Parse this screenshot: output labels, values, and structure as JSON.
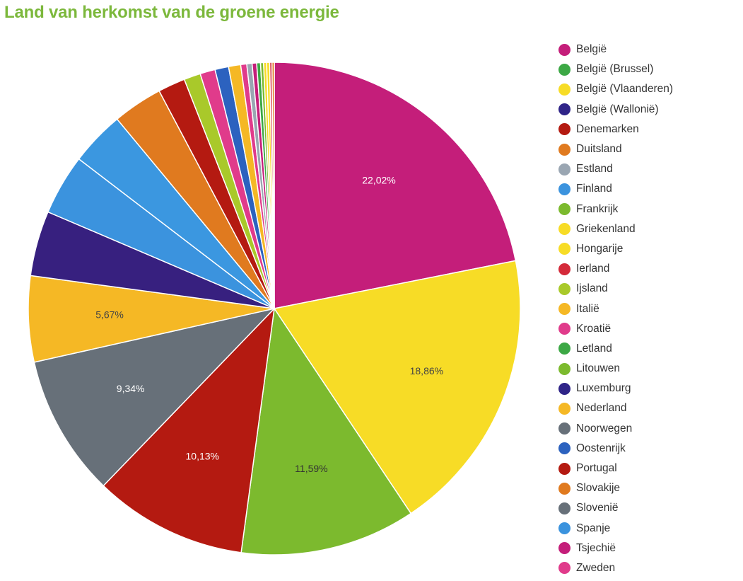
{
  "title": "Land van herkomst van de groene energie",
  "chart_data": {
    "type": "pie",
    "title": "Land van herkomst van de groene energie",
    "legend_position": "right",
    "slices": [
      {
        "label": "Tsjechië",
        "value": 22.02,
        "color": "#c41e7a",
        "display": "22,02%",
        "text_color": "#ffffff"
      },
      {
        "label": "Hongarije",
        "value": 18.86,
        "color": "#f7dc26",
        "display": "18,86%",
        "text_color": "#444444"
      },
      {
        "label": "Frankrijk",
        "value": 11.59,
        "color": "#7cba2e",
        "display": "11,59%",
        "text_color": "#333333"
      },
      {
        "label": "Portugal",
        "value": 10.13,
        "color": "#b41a11",
        "display": "10,13%",
        "text_color": "#ffffff"
      },
      {
        "label": "Noorwegen",
        "value": 9.34,
        "color": "#677079",
        "display": "9,34%",
        "text_color": "#ffffff"
      },
      {
        "label": "Nederland",
        "value": 5.67,
        "color": "#f5b825",
        "display": "5,67%",
        "text_color": "#444444"
      },
      {
        "label": "Luxemburg",
        "value": 4.3,
        "color": "#37207f",
        "display": "",
        "text_color": "#ffffff"
      },
      {
        "label": "Spanje",
        "value": 4.0,
        "color": "#3b93de",
        "display": "",
        "text_color": "#ffffff"
      },
      {
        "label": "Finland",
        "value": 3.6,
        "color": "#3b97e0",
        "display": "",
        "text_color": "#ffffff"
      },
      {
        "label": "Duitsland",
        "value": 3.3,
        "color": "#e07a1f",
        "display": "",
        "text_color": "#ffffff"
      },
      {
        "label": "Denemarken",
        "value": 1.8,
        "color": "#b41a11",
        "display": "",
        "text_color": "#ffffff"
      },
      {
        "label": "Ijsland",
        "value": 1.1,
        "color": "#a9c92a",
        "display": "",
        "text_color": "#ffffff"
      },
      {
        "label": "Kroatië",
        "value": 1.0,
        "color": "#e03b8b",
        "display": "",
        "text_color": "#ffffff"
      },
      {
        "label": "Oostenrijk",
        "value": 0.9,
        "color": "#2c62bf",
        "display": "",
        "text_color": "#ffffff"
      },
      {
        "label": "Italië",
        "value": 0.8,
        "color": "#f5b825",
        "display": "",
        "text_color": "#ffffff"
      },
      {
        "label": "Zweden",
        "value": 0.4,
        "color": "#e03b8b",
        "display": "",
        "text_color": "#ffffff"
      },
      {
        "label": "Estland",
        "value": 0.35,
        "color": "#9aa6b2",
        "display": "",
        "text_color": "#ffffff"
      },
      {
        "label": "België",
        "value": 0.3,
        "color": "#c41e7a",
        "display": "",
        "text_color": "#ffffff"
      },
      {
        "label": "Letland",
        "value": 0.25,
        "color": "#3ca845",
        "display": "",
        "text_color": "#ffffff"
      },
      {
        "label": "Litouwen",
        "value": 0.2,
        "color": "#7cba2e",
        "display": "",
        "text_color": "#ffffff"
      },
      {
        "label": "Griekenland",
        "value": 0.2,
        "color": "#f7dc26",
        "display": "",
        "text_color": "#ffffff"
      },
      {
        "label": "België (Vlaanderen)",
        "value": 0.2,
        "color": "#f7dc26",
        "display": "",
        "text_color": "#ffffff"
      },
      {
        "label": "Ierland",
        "value": 0.15,
        "color": "#d42a3a",
        "display": "",
        "text_color": "#ffffff"
      },
      {
        "label": "Slovakije",
        "value": 0.15,
        "color": "#e07a1f",
        "display": "",
        "text_color": "#ffffff"
      }
    ]
  },
  "legend": [
    {
      "label": "België",
      "color": "#c41e7a"
    },
    {
      "label": "België (Brussel)",
      "color": "#3ca845"
    },
    {
      "label": "België (Vlaanderen)",
      "color": "#f7dc26"
    },
    {
      "label": "België (Wallonië)",
      "color": "#2f2488"
    },
    {
      "label": "Denemarken",
      "color": "#b41a11"
    },
    {
      "label": "Duitsland",
      "color": "#e07a1f"
    },
    {
      "label": "Estland",
      "color": "#9aa6b2"
    },
    {
      "label": "Finland",
      "color": "#3b93de"
    },
    {
      "label": "Frankrijk",
      "color": "#7cba2e"
    },
    {
      "label": "Griekenland",
      "color": "#f7dc26"
    },
    {
      "label": "Hongarije",
      "color": "#f7dc26"
    },
    {
      "label": "Ierland",
      "color": "#d42a3a"
    },
    {
      "label": "Ijsland",
      "color": "#a9c92a"
    },
    {
      "label": "Italië",
      "color": "#f5b825"
    },
    {
      "label": "Kroatië",
      "color": "#e03b8b"
    },
    {
      "label": "Letland",
      "color": "#3ca845"
    },
    {
      "label": "Litouwen",
      "color": "#7cba2e"
    },
    {
      "label": "Luxemburg",
      "color": "#2f2488"
    },
    {
      "label": "Nederland",
      "color": "#f5b825"
    },
    {
      "label": "Noorwegen",
      "color": "#677079"
    },
    {
      "label": "Oostenrijk",
      "color": "#2c62bf"
    },
    {
      "label": "Portugal",
      "color": "#b41a11"
    },
    {
      "label": "Slovakije",
      "color": "#e07a1f"
    },
    {
      "label": "Slovenië",
      "color": "#677079"
    },
    {
      "label": "Spanje",
      "color": "#3b93de"
    },
    {
      "label": "Tsjechië",
      "color": "#c41e7a"
    },
    {
      "label": "Zweden",
      "color": "#e03b8b"
    }
  ]
}
